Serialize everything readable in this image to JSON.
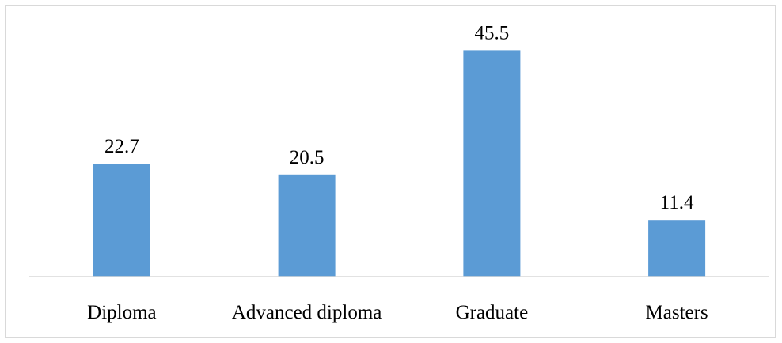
{
  "chart_data": {
    "type": "bar",
    "title": "",
    "xlabel": "",
    "ylabel": "",
    "categories": [
      "Diploma",
      "Advanced diploma",
      "Graduate",
      "Masters"
    ],
    "values": [
      22.7,
      20.5,
      45.5,
      11.4
    ],
    "data_labels": [
      "22.7",
      "20.5",
      "45.5",
      "11.4"
    ],
    "ylim": [
      0,
      50
    ],
    "grid": false,
    "legend": "none",
    "bar_color": "#5b9bd5",
    "axis_color": "#d9d9d9"
  }
}
